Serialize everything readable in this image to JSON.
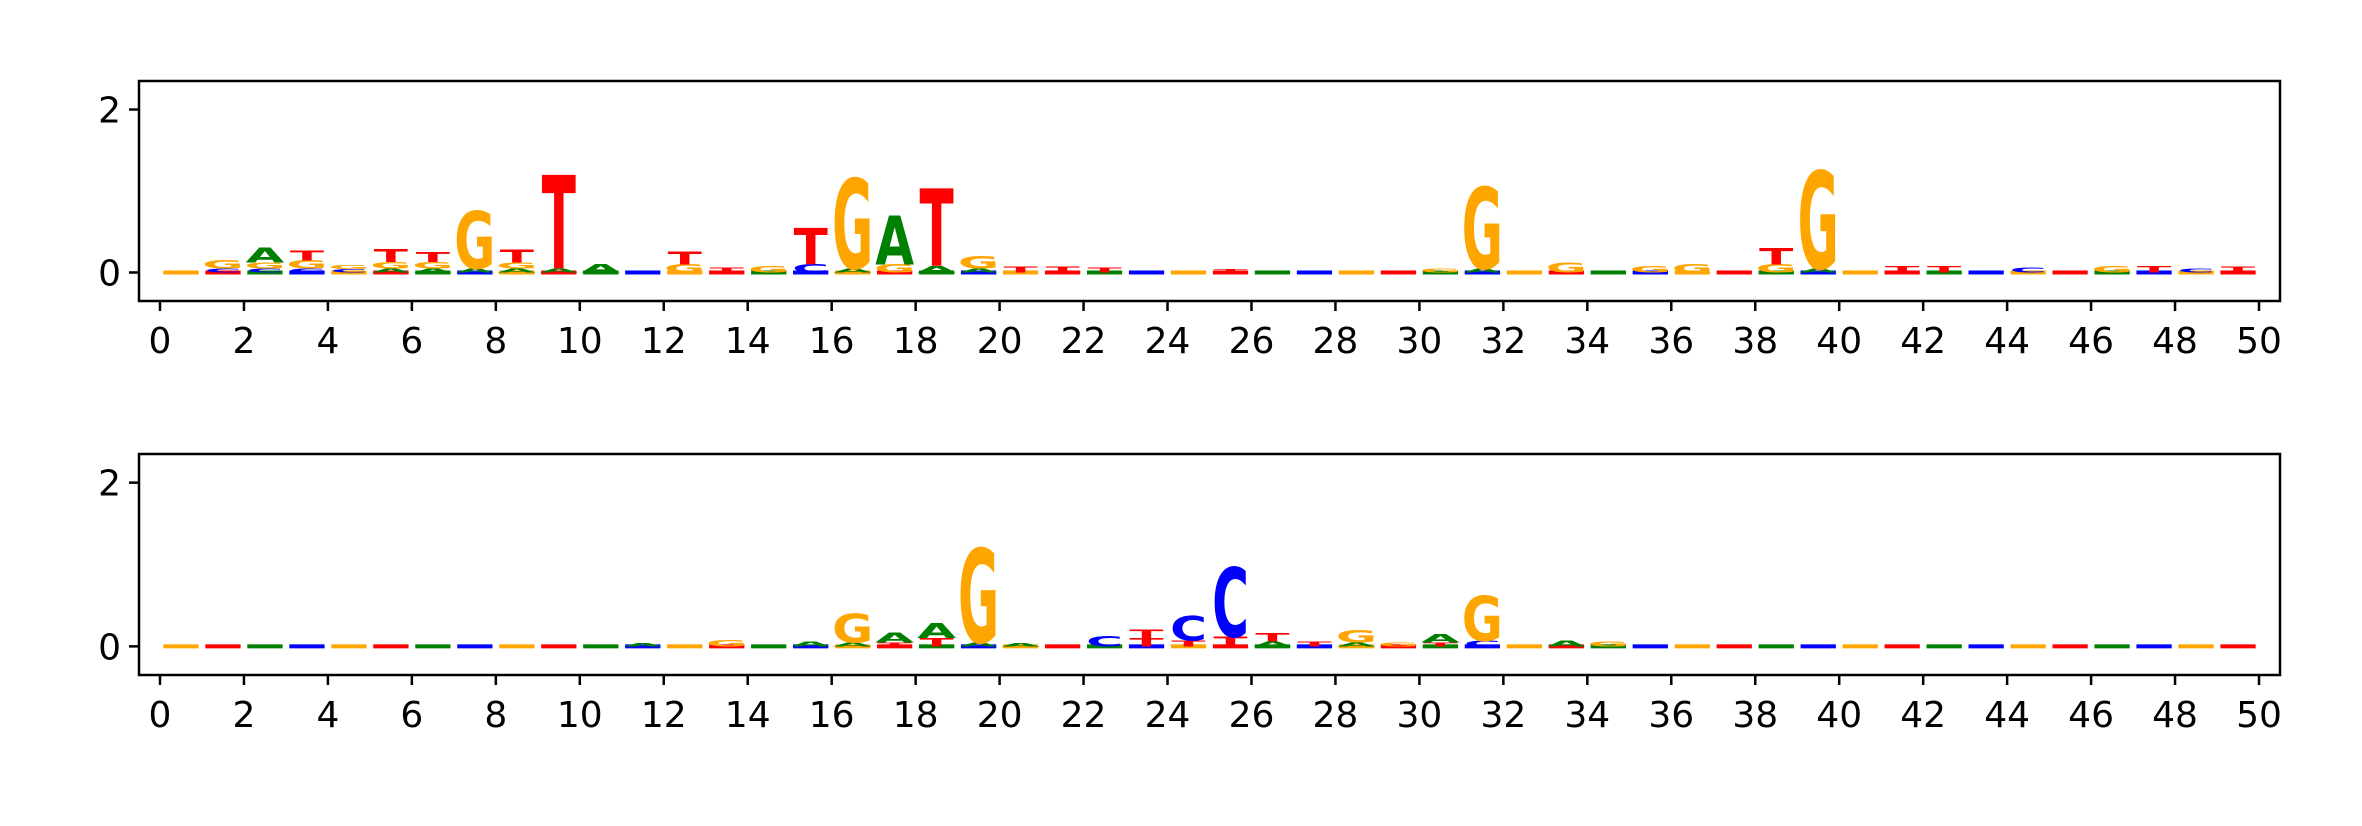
{
  "colors": {
    "A": "#008000",
    "C": "#0000FF",
    "G": "#FFA500",
    "T": "#FF0000"
  },
  "chart_data": [
    {
      "type": "sequence-logo",
      "xlim": [
        -0.5,
        50.5
      ],
      "ylim": [
        -0.35,
        2.35
      ],
      "xticks": [
        0,
        2,
        4,
        6,
        8,
        10,
        12,
        14,
        16,
        18,
        20,
        22,
        24,
        26,
        28,
        30,
        32,
        34,
        36,
        38,
        40,
        42,
        44,
        46,
        48,
        50
      ],
      "yticks": [
        0,
        2
      ],
      "positions": [
        {
          "pos": 1.5,
          "letters": [
            [
              "C",
              0.05
            ],
            [
              "G",
              0.1
            ]
          ]
        },
        {
          "pos": 2.5,
          "letters": [
            [
              "C",
              0.05
            ],
            [
              "G",
              0.07
            ],
            [
              "A",
              0.18
            ]
          ]
        },
        {
          "pos": 3.5,
          "letters": [
            [
              "C",
              0.05
            ],
            [
              "G",
              0.1
            ],
            [
              "T",
              0.12
            ]
          ]
        },
        {
          "pos": 4.5,
          "letters": [
            [
              "C",
              0.04
            ],
            [
              "G",
              0.05
            ]
          ]
        },
        {
          "pos": 5.5,
          "letters": [
            [
              "A",
              0.05
            ],
            [
              "G",
              0.08
            ],
            [
              "T",
              0.16
            ]
          ]
        },
        {
          "pos": 6.5,
          "letters": [
            [
              "A",
              0.05
            ],
            [
              "G",
              0.08
            ],
            [
              "T",
              0.12
            ]
          ]
        },
        {
          "pos": 7.5,
          "letters": [
            [
              "A",
              0.05
            ],
            [
              "G",
              0.7
            ]
          ]
        },
        {
          "pos": 8.5,
          "letters": [
            [
              "A",
              0.05
            ],
            [
              "G",
              0.07
            ],
            [
              "T",
              0.16
            ]
          ]
        },
        {
          "pos": 9.5,
          "letters": [
            [
              "A",
              0.05
            ],
            [
              "T",
              1.15
            ]
          ]
        },
        {
          "pos": 10.5,
          "letters": [
            [
              "A",
              0.1
            ]
          ]
        },
        {
          "pos": 12.5,
          "letters": [
            [
              "G",
              0.1
            ],
            [
              "T",
              0.16
            ]
          ]
        },
        {
          "pos": 13.5,
          "letters": [
            [
              "T",
              0.06
            ]
          ]
        },
        {
          "pos": 14.5,
          "letters": [
            [
              "G",
              0.08
            ]
          ]
        },
        {
          "pos": 15.5,
          "letters": [
            [
              "C",
              0.1
            ],
            [
              "T",
              0.45
            ]
          ]
        },
        {
          "pos": 16.5,
          "letters": [
            [
              "A",
              0.05
            ],
            [
              "G",
              1.1
            ]
          ]
        },
        {
          "pos": 17.5,
          "letters": [
            [
              "G",
              0.1
            ],
            [
              "A",
              0.6
            ]
          ]
        },
        {
          "pos": 18.5,
          "letters": [
            [
              "A",
              0.08
            ],
            [
              "T",
              0.95
            ]
          ]
        },
        {
          "pos": 19.5,
          "letters": [
            [
              "A",
              0.05
            ],
            [
              "G",
              0.15
            ]
          ]
        },
        {
          "pos": 20.5,
          "letters": [
            [
              "T",
              0.07
            ]
          ]
        },
        {
          "pos": 21.5,
          "letters": [
            [
              "T",
              0.07
            ]
          ]
        },
        {
          "pos": 22.5,
          "letters": [
            [
              "T",
              0.06
            ]
          ]
        },
        {
          "pos": 25.5,
          "letters": [
            [
              "T",
              0.04
            ]
          ]
        },
        {
          "pos": 30.5,
          "letters": [
            [
              "G",
              0.05
            ]
          ]
        },
        {
          "pos": 31.5,
          "letters": [
            [
              "A",
              0.05
            ],
            [
              "G",
              1.0
            ]
          ]
        },
        {
          "pos": 33.5,
          "letters": [
            [
              "G",
              0.12
            ]
          ]
        },
        {
          "pos": 35.5,
          "letters": [
            [
              "G",
              0.08
            ]
          ]
        },
        {
          "pos": 36.5,
          "letters": [
            [
              "G",
              0.1
            ]
          ]
        },
        {
          "pos": 38.5,
          "letters": [
            [
              "G",
              0.1
            ],
            [
              "T",
              0.2
            ]
          ]
        },
        {
          "pos": 39.5,
          "letters": [
            [
              "A",
              0.05
            ],
            [
              "G",
              1.2
            ]
          ]
        },
        {
          "pos": 41.5,
          "letters": [
            [
              "T",
              0.08
            ]
          ]
        },
        {
          "pos": 42.5,
          "letters": [
            [
              "T",
              0.08
            ]
          ]
        },
        {
          "pos": 44.5,
          "letters": [
            [
              "C",
              0.06
            ]
          ]
        },
        {
          "pos": 46.5,
          "letters": [
            [
              "G",
              0.08
            ]
          ]
        },
        {
          "pos": 47.5,
          "letters": [
            [
              "T",
              0.08
            ]
          ]
        },
        {
          "pos": 48.5,
          "letters": [
            [
              "C",
              0.05
            ]
          ]
        },
        {
          "pos": 49.5,
          "letters": [
            [
              "T",
              0.07
            ]
          ]
        }
      ]
    },
    {
      "type": "sequence-logo",
      "xlim": [
        -0.5,
        50.5
      ],
      "ylim": [
        -0.35,
        2.35
      ],
      "xticks": [
        0,
        2,
        4,
        6,
        8,
        10,
        12,
        14,
        16,
        18,
        20,
        22,
        24,
        26,
        28,
        30,
        32,
        34,
        36,
        38,
        40,
        42,
        44,
        46,
        48,
        50
      ],
      "yticks": [
        0,
        2
      ],
      "positions": [
        {
          "pos": 11.5,
          "letters": [
            [
              "A",
              0.04
            ]
          ]
        },
        {
          "pos": 13.5,
          "letters": [
            [
              "G",
              0.08
            ]
          ]
        },
        {
          "pos": 15.5,
          "letters": [
            [
              "A",
              0.06
            ]
          ]
        },
        {
          "pos": 16.5,
          "letters": [
            [
              "A",
              0.05
            ],
            [
              "G",
              0.35
            ]
          ]
        },
        {
          "pos": 17.5,
          "letters": [
            [
              "T",
              0.05
            ],
            [
              "A",
              0.12
            ]
          ]
        },
        {
          "pos": 18.5,
          "letters": [
            [
              "T",
              0.1
            ],
            [
              "A",
              0.18
            ]
          ]
        },
        {
          "pos": 19.5,
          "letters": [
            [
              "A",
              0.05
            ],
            [
              "G",
              1.15
            ]
          ]
        },
        {
          "pos": 20.5,
          "letters": [
            [
              "A",
              0.04
            ]
          ]
        },
        {
          "pos": 22.5,
          "letters": [
            [
              "C",
              0.13
            ]
          ]
        },
        {
          "pos": 23.5,
          "letters": [
            [
              "T",
              0.1
            ],
            [
              "T",
              0.1
            ]
          ]
        },
        {
          "pos": 24.5,
          "letters": [
            [
              "T",
              0.07
            ],
            [
              "C",
              0.3
            ]
          ]
        },
        {
          "pos": 25.5,
          "letters": [
            [
              "T",
              0.12
            ],
            [
              "C",
              0.85
            ]
          ]
        },
        {
          "pos": 26.5,
          "letters": [
            [
              "A",
              0.06
            ],
            [
              "T",
              0.1
            ]
          ]
        },
        {
          "pos": 27.5,
          "letters": [
            [
              "T",
              0.06
            ]
          ]
        },
        {
          "pos": 28.5,
          "letters": [
            [
              "A",
              0.05
            ],
            [
              "G",
              0.15
            ]
          ]
        },
        {
          "pos": 29.5,
          "letters": [
            [
              "G",
              0.05
            ]
          ]
        },
        {
          "pos": 30.5,
          "letters": [
            [
              "T",
              0.05
            ],
            [
              "A",
              0.1
            ]
          ]
        },
        {
          "pos": 31.5,
          "letters": [
            [
              "C",
              0.07
            ],
            [
              "G",
              0.55
            ]
          ]
        },
        {
          "pos": 33.5,
          "letters": [
            [
              "A",
              0.07
            ]
          ]
        },
        {
          "pos": 34.5,
          "letters": [
            [
              "G",
              0.06
            ]
          ]
        }
      ]
    }
  ]
}
